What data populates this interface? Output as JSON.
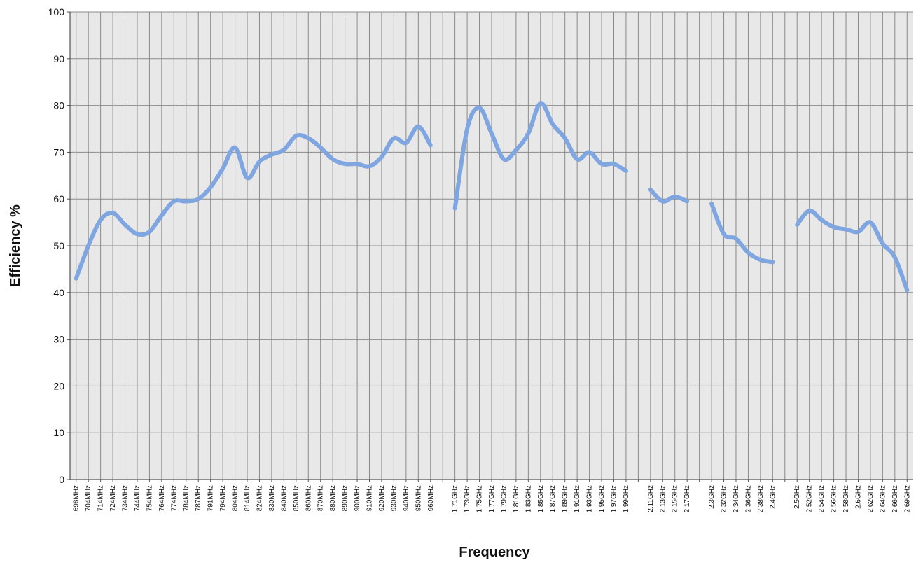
{
  "chart_data": {
    "type": "line",
    "xlabel": "Frequency",
    "ylabel": "Efficiency %",
    "categories": [
      "698MHz",
      "704MHz",
      "714MHz",
      "724MHz",
      "734MHz",
      "744MHz",
      "754MHz",
      "764MHz",
      "774MHz",
      "784MHz",
      "787MHz",
      "791MHz",
      "794MHz",
      "804MHz",
      "814MHz",
      "824MHz",
      "830MHz",
      "840MHz",
      "850MHz",
      "860MHz",
      "870MHz",
      "880MHz",
      "890MHz",
      "900MHz",
      "910MHz",
      "920MHz",
      "930MHz",
      "940MHz",
      "950MHz",
      "960MHz",
      null,
      "1.71GHz",
      "1.73GHz",
      "1.75GHz",
      "1.77GHz",
      "1.79GHz",
      "1.81GHz",
      "1.83GHz",
      "1.85GHz",
      "1.87GHz",
      "1.89GHz",
      "1.91GHz",
      "1.93GHz",
      "1.95GHz",
      "1.97GHz",
      "1.99GHz",
      null,
      "2.11GHz",
      "2.13GHz",
      "2.15GHz",
      "2.17GHz",
      null,
      "2.3GHz",
      "2.32GHz",
      "2.34GHz",
      "2.36GHz",
      "2.38GHz",
      "2.4GHz",
      null,
      "2.5GHz",
      "2.52GHz",
      "2.54GHz",
      "2.56GHz",
      "2.58GHz",
      "2.6GHz",
      "2.62GHz",
      "2.64GHz",
      "2.66GHz",
      "2.69GHz"
    ],
    "values": [
      43,
      50,
      55.5,
      57,
      54.5,
      52.5,
      53,
      56.5,
      59.5,
      59.5,
      60,
      62.5,
      66.5,
      71,
      64.5,
      68,
      69.5,
      70.5,
      73.5,
      73,
      71,
      68.5,
      67.5,
      67.5,
      67,
      69,
      73,
      72,
      75.5,
      71.5,
      null,
      58,
      75,
      79.5,
      74,
      68.5,
      70.5,
      74,
      80.5,
      76,
      73,
      68.5,
      70,
      67.5,
      67.5,
      66,
      null,
      62,
      59.5,
      60.5,
      59.5,
      null,
      59,
      52.5,
      51.5,
      48.5,
      47,
      46.5,
      null,
      54.5,
      57.5,
      55.5,
      54,
      53.5,
      53,
      55,
      50.5,
      47.5,
      40.5
    ],
    "color": "#7fa6e0",
    "ylim": [
      0,
      100
    ],
    "yticks": [
      0,
      10,
      20,
      30,
      40,
      50,
      60,
      70,
      80,
      90,
      100
    ],
    "grid": true
  }
}
